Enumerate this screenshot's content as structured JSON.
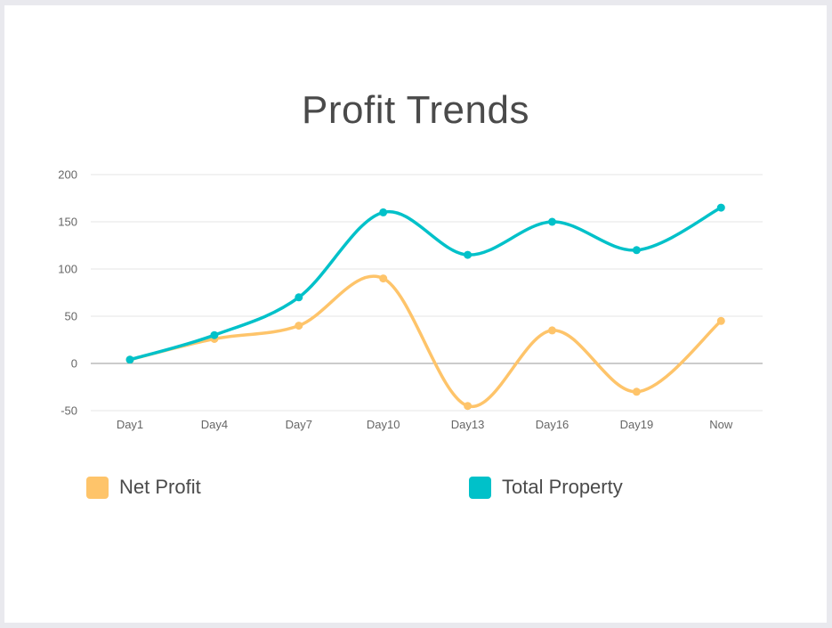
{
  "chart_data": {
    "type": "line",
    "title": "Profit Trends",
    "categories": [
      "Day1",
      "Day4",
      "Day7",
      "Day10",
      "Day13",
      "Day16",
      "Day19",
      "Now"
    ],
    "ylim": [
      -50,
      200
    ],
    "yticks": [
      200,
      150,
      100,
      50,
      0,
      -50
    ],
    "grid": true,
    "legend_position": "bottom",
    "series": [
      {
        "name": "Net Profit",
        "color": "#fec46a",
        "values": [
          4,
          26,
          40,
          90,
          -45,
          35,
          -30,
          45
        ]
      },
      {
        "name": "Total Property",
        "color": "#00c1c9",
        "values": [
          4,
          30,
          70,
          160,
          115,
          150,
          120,
          165
        ]
      }
    ]
  }
}
